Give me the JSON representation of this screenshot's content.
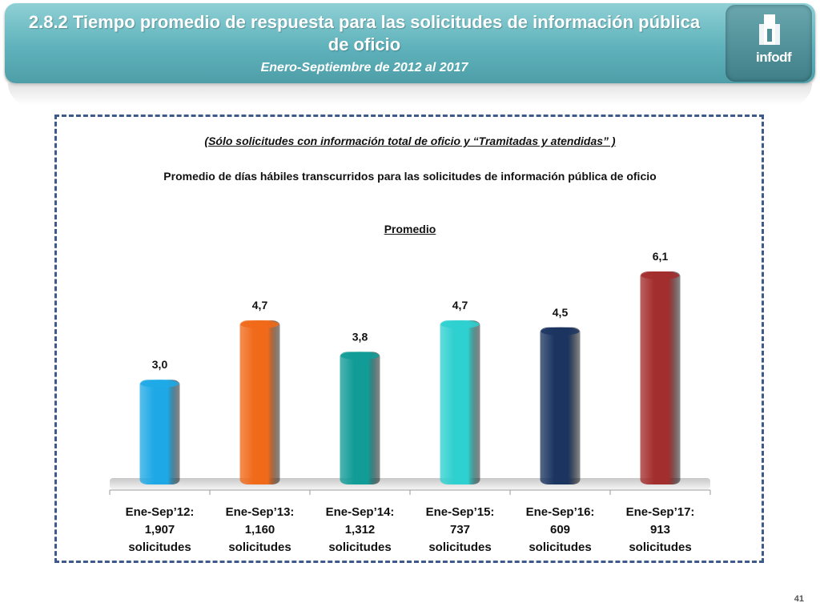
{
  "header": {
    "title": "2.8.2 Tiempo promedio de respuesta para las solicitudes de información pública de oficio",
    "subtitle": "Enero-Septiembre de 2012 al 2017",
    "logo_text": "infodf"
  },
  "note": "(Sólo solicitudes con información total de oficio y “Tramitadas y atendidas” )",
  "page_number": "41",
  "colors": {
    "banner": "#5fb2bb",
    "frame": "#3d5a8a"
  },
  "chart_data": {
    "type": "bar",
    "title": "Promedio de días hábiles transcurridos para las solicitudes de información pública de oficio",
    "series_name": "Promedio",
    "categories": [
      [
        "Ene-Sep’12:",
        "1,907",
        "solicitudes"
      ],
      [
        "Ene-Sep’13:",
        "1,160",
        "solicitudes"
      ],
      [
        "Ene-Sep’14:",
        "1,312",
        "solicitudes"
      ],
      [
        "Ene-Sep’15:",
        "737",
        "solicitudes"
      ],
      [
        "Ene-Sep’16:",
        "609",
        "solicitudes"
      ],
      [
        "Ene-Sep’17:",
        "913",
        "solicitudes"
      ]
    ],
    "values": [
      3.0,
      4.7,
      3.8,
      4.7,
      4.5,
      6.1
    ],
    "data_labels": [
      "3,0",
      "4,7",
      "3,8",
      "4,7",
      "4,5",
      "6,1"
    ],
    "bar_colors": [
      "#1ea9e6",
      "#f06a1a",
      "#129c97",
      "#2fd0d0",
      "#1c3560",
      "#a32e2e"
    ],
    "ylim": [
      0,
      7
    ],
    "xlabel": "",
    "ylabel": ""
  }
}
